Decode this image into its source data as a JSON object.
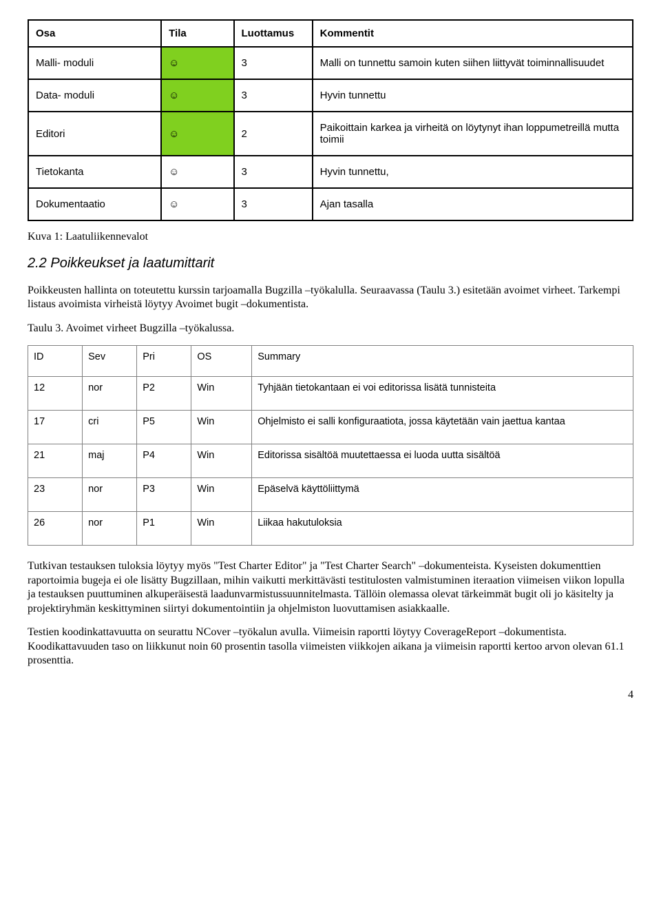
{
  "table1": {
    "headers": [
      "Osa",
      "Tila",
      "Luottamus",
      "Kommentit"
    ],
    "smiley": "☺",
    "colors": {
      "highlight": "#80d01f",
      "border": "#000000"
    },
    "rows": [
      {
        "osa": "Malli- moduli",
        "hl": true,
        "luot": "3",
        "kom": "Malli on tunnettu samoin kuten siihen liittyvät toiminnallisuudet"
      },
      {
        "osa": "Data- moduli",
        "hl": true,
        "luot": "3",
        "kom": "Hyvin tunnettu"
      },
      {
        "osa": "Editori",
        "hl": true,
        "luot": "2",
        "kom": "Paikoittain karkea ja virheitä on löytynyt ihan loppumetreillä mutta toimii"
      },
      {
        "osa": "Tietokanta",
        "hl": false,
        "luot": "3",
        "kom": "Hyvin tunnettu,"
      },
      {
        "osa": "Dokumentaatio",
        "hl": false,
        "luot": "3",
        "kom": "Ajan tasalla"
      }
    ]
  },
  "caption1": "Kuva 1: Laatuliikennevalot",
  "section_title": "2.2 Poikkeukset ja laatumittarit",
  "para1": "Poikkeusten hallinta on toteutettu kurssin tarjoamalla Bugzilla –työkalulla. Seuraavassa (Taulu 3.) esitetään avoimet virheet. Tarkempi listaus avoimista virheistä löytyy Avoimet bugit –dokumentista.",
  "para2": "Taulu 3. Avoimet virheet Bugzilla –työkalussa.",
  "table2": {
    "headers": [
      "ID",
      "Sev",
      "Pri",
      "OS",
      "Summary"
    ],
    "border_color": "#808080",
    "rows": [
      {
        "id": "12",
        "sev": "nor",
        "pri": "P2",
        "os": "Win",
        "sum": "Tyhjään tietokantaan ei voi editorissa lisätä tunnisteita"
      },
      {
        "id": "17",
        "sev": "cri",
        "pri": "P5",
        "os": "Win",
        "sum": "Ohjelmisto ei salli konfiguraatiota, jossa käytetään vain jaettua kantaa"
      },
      {
        "id": "21",
        "sev": "maj",
        "pri": "P4",
        "os": "Win",
        "sum": "Editorissa sisältöä muutettaessa ei luoda uutta sisältöä"
      },
      {
        "id": "23",
        "sev": "nor",
        "pri": "P3",
        "os": "Win",
        "sum": "Epäselvä käyttöliittymä"
      },
      {
        "id": "26",
        "sev": "nor",
        "pri": "P1",
        "os": "Win",
        "sum": "Liikaa hakutuloksia"
      }
    ]
  },
  "para3": "Tutkivan testauksen tuloksia löytyy myös \"Test Charter Editor\" ja \"Test Charter Search\" –dokumenteista. Kyseisten dokumenttien raportoimia bugeja ei ole lisätty Bugzillaan, mihin vaikutti merkittävästi testitulosten valmistuminen iteraation viimeisen viikon lopulla ja testauksen puuttuminen alkuperäisestä laadunvarmistussuunnitelmasta. Tällöin olemassa olevat tärkeimmät bugit oli jo käsitelty ja projektiryhmän keskittyminen siirtyi dokumentointiin ja ohjelmiston luovuttamisen asiakkaalle.",
  "para4": "Testien koodinkattavuutta on seurattu NCover –työkalun avulla. Viimeisin raportti löytyy CoverageReport –dokumentista. Koodikattavuuden taso on liikkunut noin 60 prosentin tasolla viimeisten viikkojen aikana ja viimeisin raportti kertoo arvon olevan 61.1 prosenttia.",
  "pagenum": "4"
}
